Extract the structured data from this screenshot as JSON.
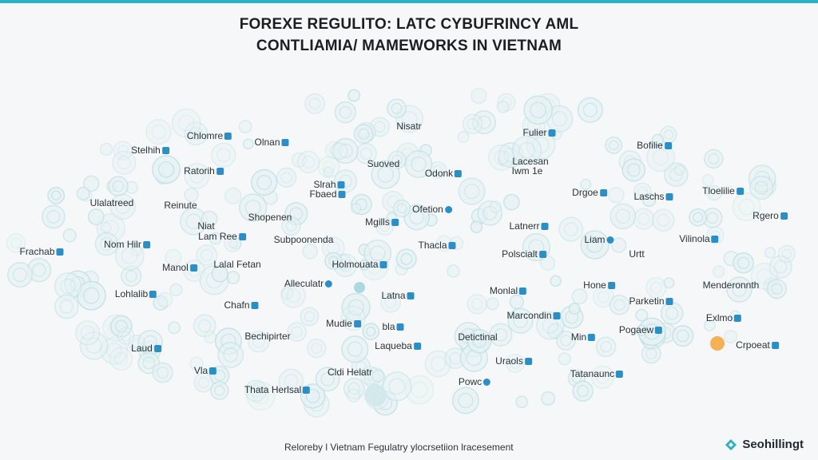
{
  "header": {
    "title_line1": "FOREXE REGULITO: LATC CYBUFRINCY AML",
    "title_line2": "CONTLIAMIA/ MAMEWORKS IN VIETNAM"
  },
  "colors": {
    "accent": "#2bb0c4",
    "badge": "#2b8fc7",
    "icon_stroke": "#bfe0e4",
    "icon_fill": "#e7f2f4",
    "orange_icon": "#f4a53a"
  },
  "network": {
    "labels": [
      {
        "text": "Chlomre",
        "badge": true
      },
      {
        "text": "Olnan",
        "badge": true
      },
      {
        "text": "Nisatr",
        "badge": false
      },
      {
        "text": "Fulier",
        "badge": true
      },
      {
        "text": "Bofilie",
        "badge": true
      },
      {
        "text": "Stelhih",
        "badge": true
      },
      {
        "text": "Ratorih",
        "badge": true
      },
      {
        "text": "Suoved",
        "badge": false
      },
      {
        "text": "Odonk",
        "badge": true
      },
      {
        "text": "Lacesan",
        "badge": false
      },
      {
        "text": "Iwm 1e",
        "badge": false
      },
      {
        "text": "Slrah",
        "badge": true
      },
      {
        "text": "Fbaed",
        "badge": true
      },
      {
        "text": "Drgoe",
        "badge": true
      },
      {
        "text": "Laschs",
        "badge": true
      },
      {
        "text": "Tloelilie",
        "badge": true
      },
      {
        "text": "Ulalatreed",
        "badge": false
      },
      {
        "text": "Reinute",
        "badge": false
      },
      {
        "text": "Ofetion",
        "badge": true
      },
      {
        "text": "Rgero",
        "badge": true
      },
      {
        "text": "Niat",
        "badge": false
      },
      {
        "text": "Lam Ree",
        "badge": true
      },
      {
        "text": "Shopenen",
        "badge": false
      },
      {
        "text": "Mgills",
        "badge": true
      },
      {
        "text": "Latnerr",
        "badge": true
      },
      {
        "text": "Frachab",
        "badge": true
      },
      {
        "text": "Nom Hilr",
        "badge": true
      },
      {
        "text": "Subpoonenda",
        "badge": false
      },
      {
        "text": "Thacla",
        "badge": true
      },
      {
        "text": "Liam",
        "badge": true
      },
      {
        "text": "Vilinola",
        "badge": true
      },
      {
        "text": "Manol",
        "badge": true
      },
      {
        "text": "Lalal Fetan",
        "badge": false
      },
      {
        "text": "Holmouata",
        "badge": true
      },
      {
        "text": "Polscialt",
        "badge": true
      },
      {
        "text": "Urtt",
        "badge": false
      },
      {
        "text": "Alleculatr",
        "badge": true
      },
      {
        "text": "Monlal",
        "badge": true
      },
      {
        "text": "Hone",
        "badge": true
      },
      {
        "text": "Menderonnth",
        "badge": false
      },
      {
        "text": "Lohlalib",
        "badge": true
      },
      {
        "text": "Latna",
        "badge": true
      },
      {
        "text": "Parketin",
        "badge": true
      },
      {
        "text": "Chafn",
        "badge": true
      },
      {
        "text": "Marcondin",
        "badge": true
      },
      {
        "text": "Exlmo",
        "badge": true
      },
      {
        "text": "Mudie",
        "badge": true
      },
      {
        "text": "bla",
        "badge": true
      },
      {
        "text": "Pogaew",
        "badge": true
      },
      {
        "text": "Bechipirter",
        "badge": false
      },
      {
        "text": "Detictinal",
        "badge": false
      },
      {
        "text": "Min",
        "badge": true
      },
      {
        "text": "Crpoeat",
        "badge": true
      },
      {
        "text": "Laud",
        "badge": true
      },
      {
        "text": "Laqueba",
        "badge": true
      },
      {
        "text": "Uraols",
        "badge": true
      },
      {
        "text": "Vla",
        "badge": true
      },
      {
        "text": "Cldi Helatr",
        "badge": false
      },
      {
        "text": "Tatanaunc",
        "badge": true
      },
      {
        "text": "Powc",
        "badge": true
      },
      {
        "text": "Thata Herlsal",
        "badge": true
      }
    ]
  },
  "footer": {
    "caption": "Reloreby l Vietnam Fegulatry ylocrsetiion lracesement",
    "brand": "Seohillingt"
  }
}
